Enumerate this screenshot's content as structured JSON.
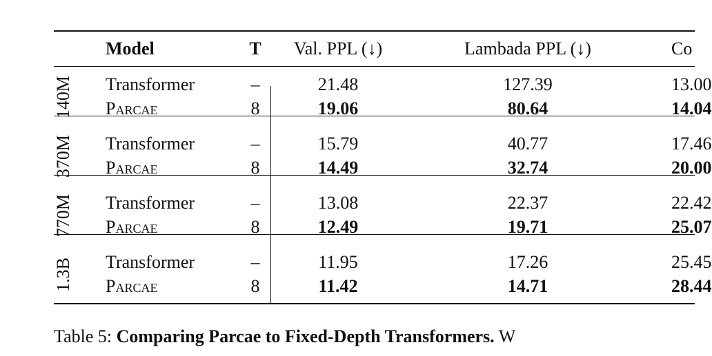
{
  "table": {
    "columns": [
      "Model",
      "T",
      "Val. PPL (↓)",
      "Lambada PPL (↓)",
      "Co"
    ],
    "groups": [
      {
        "label": "140M",
        "rows": [
          [
            "Transformer",
            "–",
            "21.48",
            "127.39",
            "13.00"
          ],
          [
            "Parcae",
            "8",
            "19.06",
            "80.64",
            "14.04"
          ]
        ]
      },
      {
        "label": "370M",
        "rows": [
          [
            "Transformer",
            "–",
            "15.79",
            "40.77",
            "17.46"
          ],
          [
            "Parcae",
            "8",
            "14.49",
            "32.74",
            "20.00"
          ]
        ]
      },
      {
        "label": "770M",
        "rows": [
          [
            "Transformer",
            "–",
            "13.08",
            "22.37",
            "22.42"
          ],
          [
            "Parcae",
            "8",
            "12.49",
            "19.71",
            "25.07"
          ]
        ]
      },
      {
        "label": "1.3B",
        "rows": [
          [
            "Transformer",
            "–",
            "11.95",
            "17.26",
            "25.45"
          ],
          [
            "Parcae",
            "8",
            "11.42",
            "14.71",
            "28.44"
          ]
        ]
      }
    ]
  },
  "caption": {
    "label": "Table 5:",
    "title": "Comparing Parcae to Fixed-Depth Transformers.",
    "text": "W"
  }
}
